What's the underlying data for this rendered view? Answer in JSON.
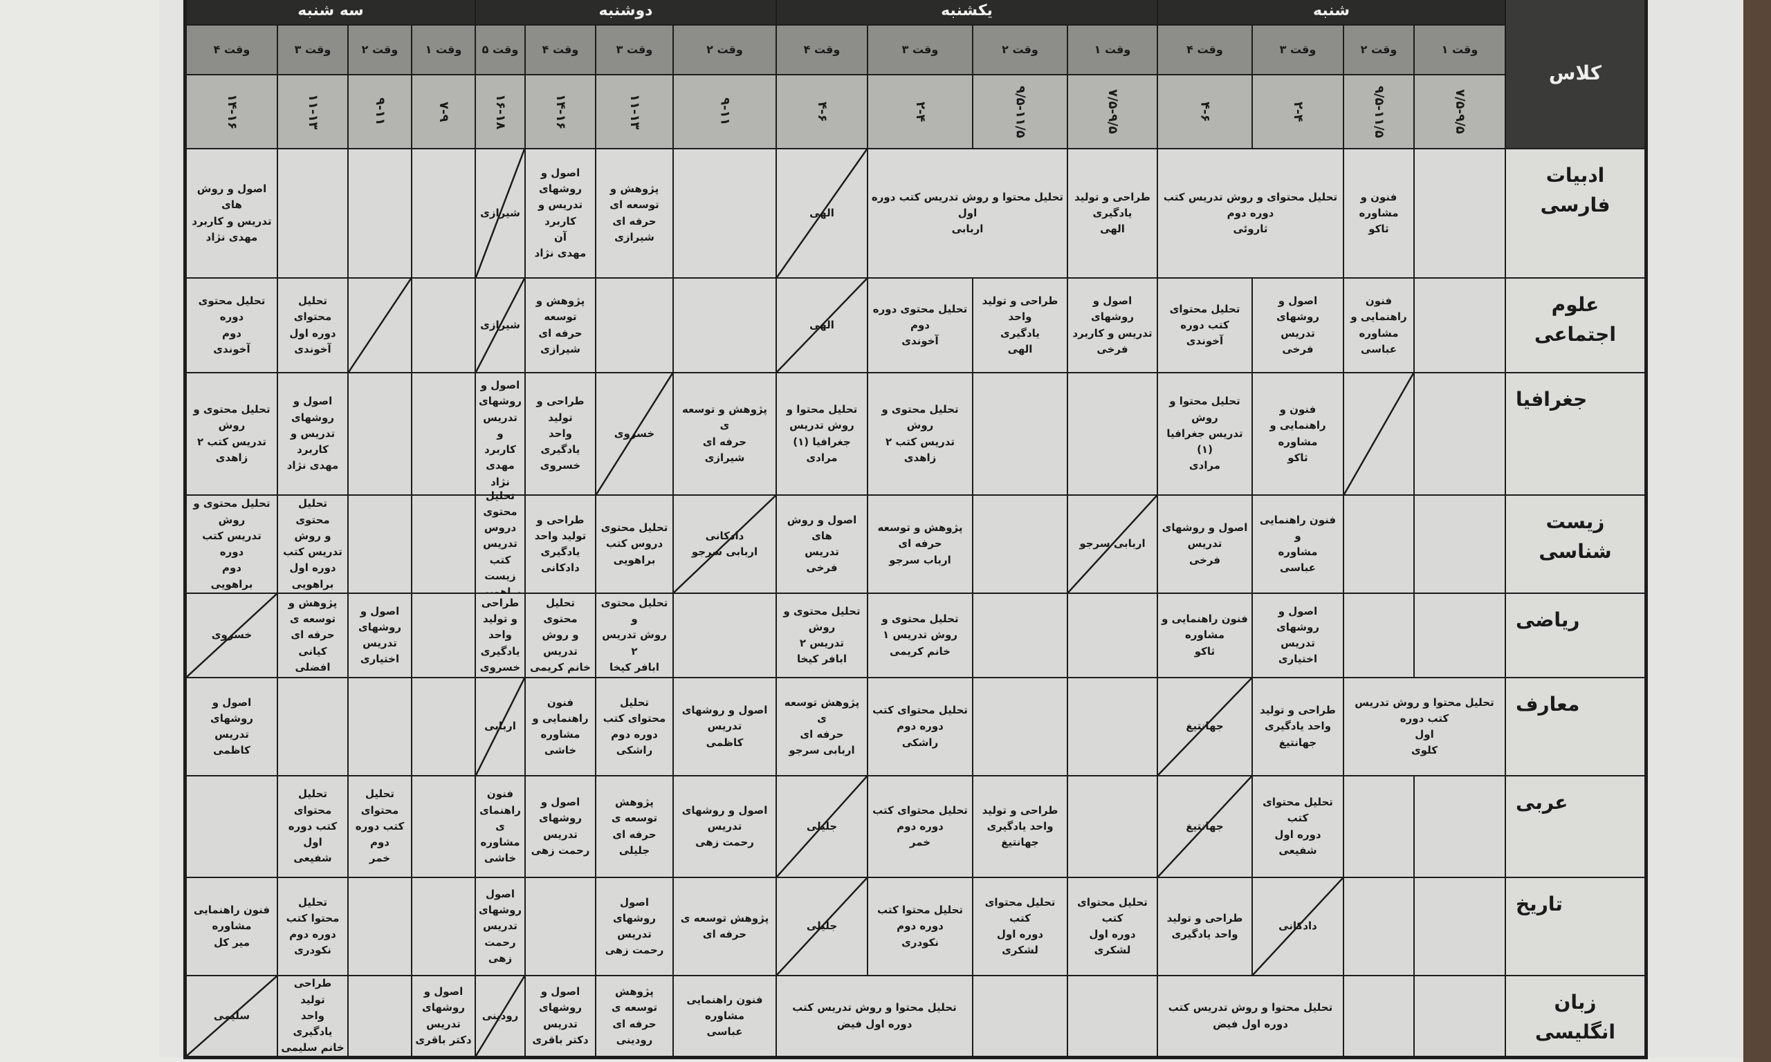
{
  "header": {
    "class_label": "کلاس",
    "days": [
      {
        "name": "شنبه",
        "slots": [
          {
            "label": "وقت ۱",
            "time": "۷/۵-۹/۵"
          },
          {
            "label": "وقت ۲",
            "time": "۹/۵-۱۱/۵"
          },
          {
            "label": "وقت ۳",
            "time": "۲-۴"
          },
          {
            "label": "وقت ۴",
            "time": "۴-۶"
          }
        ]
      },
      {
        "name": "یکشنبه",
        "slots": [
          {
            "label": "وقت ۱",
            "time": "۷/۵-۹/۵"
          },
          {
            "label": "وقت ۲",
            "time": "۹/۵-۱۱/۵"
          },
          {
            "label": "وقت ۳",
            "time": "۲-۴"
          },
          {
            "label": "وقت ۴",
            "time": "۴-۶"
          }
        ]
      },
      {
        "name": "دوشنبه",
        "slots": [
          {
            "label": "وقت ۲",
            "time": "۹-۱۱"
          },
          {
            "label": "وقت ۳",
            "time": "۱۱-۱۳"
          },
          {
            "label": "وقت ۴",
            "time": "۱۴-۱۶"
          },
          {
            "label": "وقت ۵",
            "time": "۱۶-۱۸"
          }
        ]
      },
      {
        "name": "سه شنبه",
        "slots": [
          {
            "label": "وقت ۱",
            "time": "۷-۹"
          },
          {
            "label": "وقت ۲",
            "time": "۹-۱۱"
          },
          {
            "label": "وقت ۳",
            "time": "۱۱-۱۳"
          },
          {
            "label": "وقت ۴",
            "time": "۱۴-۱۶"
          }
        ]
      }
    ]
  },
  "rows": [
    {
      "subject": "ادبیات فارسی",
      "cells": [
        {
          "t": ""
        },
        {
          "t": "فنون و\nمشاوره\nثاکو"
        },
        {
          "t": "تحلیل محتوای و روش تدریس کتب دوره دوم\nثاروئی",
          "span": 2
        },
        {
          "t": "طراحی و تولید\nیادگیری\nالهی"
        },
        {
          "t": "تحلیل محتوا و روش تدریس کتب دوره اول\nاربابی",
          "span": 2
        },
        {
          "t": "الهی",
          "slash": true
        },
        {
          "t": ""
        },
        {
          "t": "پژوهش و توسعه ای\nحرفه ای\nشیرازی"
        },
        {
          "t": "اصول و روشهای\nتدریس و کاربرد\nآن\nمهدی نژاد"
        },
        {
          "t": "شیرازی",
          "slash": true
        },
        {
          "t": ""
        },
        {
          "t": ""
        },
        {
          "t": ""
        },
        {
          "t": "اصول و روش های\nتدریس و کاربرد\nمهدی نژاد"
        }
      ]
    },
    {
      "subject": "علوم اجتماعی",
      "cells": [
        {
          "t": ""
        },
        {
          "t": "فنون\nراهنمایی و\nمشاوره\nعباسی"
        },
        {
          "t": "اصول و روشهای\nتدریس\nفرخی"
        },
        {
          "t": "تحلیل محتوای\nکتب دوره\nآخوندی"
        },
        {
          "t": "اصول و روشهای\nتدریس و کاربرد\nفرخی"
        },
        {
          "t": "طراحی و تولید واحد\nیادگیری\nالهی"
        },
        {
          "t": "تحلیل محتوی دوره\nدوم\nآخوندی"
        },
        {
          "t": "الهی",
          "slash": true
        },
        {
          "t": ""
        },
        {
          "t": ""
        },
        {
          "t": "پژوهش و توسعه\nحرفه ای\nشیرازی"
        },
        {
          "t": "شیرازی",
          "slash": true
        },
        {
          "t": ""
        },
        {
          "t": "",
          "slash": true
        },
        {
          "t": "تحلیل محتوای\nدوره اول\nآخوندی"
        },
        {
          "t": "تحلیل محتوی دوره\nدوم\nآخوندی"
        }
      ]
    },
    {
      "subject": "جغرافیا",
      "cells": [
        {
          "t": ""
        },
        {
          "t": "",
          "slash": true
        },
        {
          "t": "فنون و\nراهنمایی و\nمشاوره\nثاکو"
        },
        {
          "t": "تحلیل محتوا و روش\nتدریس جغرافیا (۱)\nمرادی"
        },
        {
          "t": ""
        },
        {
          "t": ""
        },
        {
          "t": "تحلیل محتوی و روش\nتدریس کتب ۲\nزاهدی"
        },
        {
          "t": "تحلیل محتوا و\nروش تدریس\nجغرافیا (۱)\nمرادی"
        },
        {
          "t": "پژوهش و توسعه ی\nحرفه ای\nشیرازی"
        },
        {
          "t": "خسروی",
          "slash": true
        },
        {
          "t": "طراحی و تولید\nواحد یادگیری\nخسروی"
        },
        {
          "t": "اصول و\nروشهای\nتدریس و\nکاربرد\nمهدی\nنژاد"
        },
        {
          "t": ""
        },
        {
          "t": ""
        },
        {
          "t": "اصول و\nروشهای\nتدریس و\nکاربرد\nمهدی نژاد"
        },
        {
          "t": "تحلیل محتوی و روش\nتدریس کتب ۲\nزاهدی"
        }
      ]
    },
    {
      "subject": "زیست شناسی",
      "cells": [
        {
          "t": ""
        },
        {
          "t": ""
        },
        {
          "t": "فنون راهنمایی و\nمشاوره\nعباسی"
        },
        {
          "t": "اصول و روشهای\nتدریس\nفرخی"
        },
        {
          "t": "اربابی سرجو",
          "slash": true
        },
        {
          "t": ""
        },
        {
          "t": "پژوهش و توسعه\nحرفه ای\nارباب سرجو"
        },
        {
          "t": "اصول و روش های\nتدریس\nفرخی"
        },
        {
          "t": "دادکانی\nاربابی سرجو",
          "slash": true
        },
        {
          "t": "تحلیل محتوی\nدروس کتب\nبراهویی"
        },
        {
          "t": "طراحی و\nتولید واحد\nیادگیری\nدادکانی"
        },
        {
          "t": "تحلیل\nمحتوی\nدروس\nتدریس\nکتب زیست\nبراهویی"
        },
        {
          "t": ""
        },
        {
          "t": ""
        },
        {
          "t": "تحلیل محتوی\nو روش\nتدریس کتب\nدوره اول\nبراهویی"
        },
        {
          "t": "تحلیل محتوی و روش\nتدریس کتب دوره\nدوم\nبراهویی"
        }
      ]
    },
    {
      "subject": "ریاضی",
      "cells": [
        {
          "t": ""
        },
        {
          "t": ""
        },
        {
          "t": "اصول و روشهای\nتدریس\nاختیاری"
        },
        {
          "t": "فنون راهنمایی و\nمشاوره\nثاکو"
        },
        {
          "t": ""
        },
        {
          "t": ""
        },
        {
          "t": "تحلیل محتوی و\nروش تدریس ۱\nخانم کریمی"
        },
        {
          "t": "تحلیل محتوی و روش\nتدریس ۲\nابافر کیخا"
        },
        {
          "t": ""
        },
        {
          "t": "تحلیل محتوی و\nروش تدریس ۲\nابافر کیخا"
        },
        {
          "t": "تحلیل محتوی\nو روش تدریس\nخانم کریمی"
        },
        {
          "t": "طراحی\nو تولید\nواحد\nیادگیری\nخسروی"
        },
        {
          "t": ""
        },
        {
          "t": "اصول و\nروشهای\nتدریس\nاختیاری"
        },
        {
          "t": "پژوهش و\nتوسعه ی\nحرفه ای\nکیانی افضلی"
        },
        {
          "t": "خسروی",
          "slash": true
        }
      ]
    },
    {
      "subject": "معارف",
      "cells": [
        {
          "t": "تحلیل محتوا و روش تدریس کتب دوره\nاول\nکلوی",
          "span": 2
        },
        {
          "t": "طراحی و تولید\nواحد یادگیری\nجهانتیغ"
        },
        {
          "t": "جهانتیغ",
          "slash": true
        },
        {
          "t": ""
        },
        {
          "t": ""
        },
        {
          "t": "تحلیل محتوای کتب\nدوره دوم\nراشکی"
        },
        {
          "t": "پژوهش توسعه ی\nحرفه ای\nاربابی سرجو"
        },
        {
          "t": "اصول و روشهای\nتدریس\nکاظمی"
        },
        {
          "t": "تحلیل\nمحتوای کتب\nدوره دوم\nراشکی"
        },
        {
          "t": "فنون\nراهنمایی و\nمشاوره\nخاشی"
        },
        {
          "t": "اربابی",
          "slash": true
        },
        {
          "t": ""
        },
        {
          "t": ""
        },
        {
          "t": ""
        },
        {
          "t": "اصول و روشهای\nتدریس\nکاظمی"
        }
      ]
    },
    {
      "subject": "عربی",
      "cells": [
        {
          "t": ""
        },
        {
          "t": ""
        },
        {
          "t": "تحلیل محتوای کتب\nدوره اول\nشفیعی"
        },
        {
          "t": "جهانتیغ",
          "slash": true
        },
        {
          "t": ""
        },
        {
          "t": "طراحی و تولید\nواحد یادگیری\nجهانتیغ"
        },
        {
          "t": "تحلیل محتوای کتب\nدوره دوم\nخمر"
        },
        {
          "t": "جلیلی",
          "slash": true
        },
        {
          "t": "اصول و روشهای\nتدریس\nرحمت زهی"
        },
        {
          "t": "پژوهش توسعه ی\nحرفه ای\nجلیلی"
        },
        {
          "t": "اصول و\nروشهای\nتدریس\nرحمت زهی"
        },
        {
          "t": "فنون\nراهنمای\nی\nمشاوره\nخاشی"
        },
        {
          "t": ""
        },
        {
          "t": "تحلیل\nمحتوای\nکتب دوره\nدوم\nخمر"
        },
        {
          "t": "تحلیل محتوای\nکتب دوره اول\nشفیعی"
        },
        {
          "t": ""
        }
      ]
    },
    {
      "subject": "تاریخ",
      "cells": [
        {
          "t": ""
        },
        {
          "t": ""
        },
        {
          "t": "دادکانی",
          "slash": true
        },
        {
          "t": "طراحی و تولید\nواحد یادگیری"
        },
        {
          "t": "تحلیل محتوای کتب\nدوره اول\nلشکری"
        },
        {
          "t": "تحلیل محتوای کتب\nدوره اول\nلشکری"
        },
        {
          "t": "تحلیل محتوا کتب\nدوره دوم\nنکودری"
        },
        {
          "t": "جلیلی",
          "slash": true
        },
        {
          "t": "پژوهش توسعه ی\nحرفه ای"
        },
        {
          "t": "اصول روشهای\nتدریس\nرحمت زهی"
        },
        {
          "t": ""
        },
        {
          "t": "اصول\nروشهای\nتدریس\nرحمت\nزهی"
        },
        {
          "t": ""
        },
        {
          "t": ""
        },
        {
          "t": "تحلیل\nمحتوا کتب\nدوره دوم\nنکودری"
        },
        {
          "t": "فنون راهنمایی\nمشاوره\nمیر کل"
        }
      ]
    },
    {
      "subject": "زبان انگلیسی",
      "cells": [
        {
          "t": ""
        },
        {
          "t": ""
        },
        {
          "t": "تحلیل محتوا و روش تدریس کتب دوره اول فیض",
          "span": 2
        },
        {
          "t": ""
        },
        {
          "t": ""
        },
        {
          "t": "تحلیل محتوا و روش تدریس کتب دوره اول فیض",
          "span": 2
        },
        {
          "t": "فنون راهنمایی مشاوره\nعباسی"
        },
        {
          "t": "پژوهش توسعه ی\nحرفه ای\nرودینی"
        },
        {
          "t": "اصول و\nروشهای\nتدریس\nدکتر باقری"
        },
        {
          "t": "رودینی",
          "slash": true
        },
        {
          "t": "اصول و\nروشهای\nتدریس\nدکتر باقری"
        },
        {
          "t": ""
        },
        {
          "t": "طراحی تولید\nواحد یادگیری\nخانم سلیمی"
        },
        {
          "t": "سلیمی",
          "slash": true
        }
      ]
    }
  ]
}
